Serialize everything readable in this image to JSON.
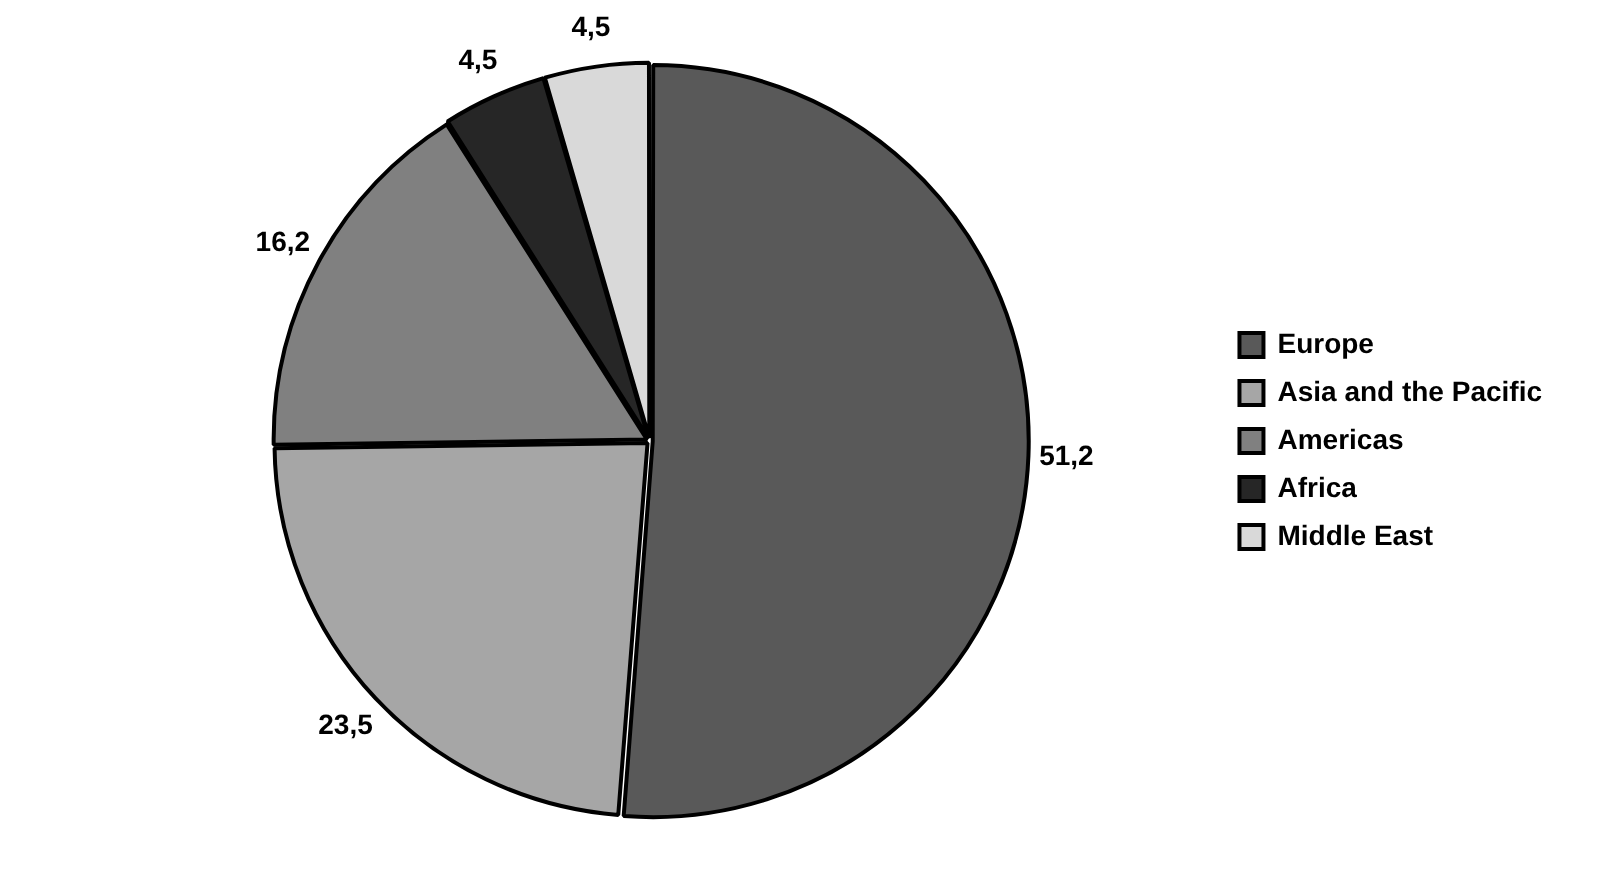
{
  "chart_data": {
    "type": "pie",
    "categories": [
      "Europe",
      "Asia and the Pacific",
      "Americas",
      "Africa",
      "Middle East"
    ],
    "values": [
      51.2,
      23.5,
      16.2,
      4.5,
      4.5
    ],
    "value_labels": [
      "51,2",
      "23,5",
      "16,2",
      "4,5",
      "4,5"
    ],
    "colors": [
      "#595959",
      "#a6a6a6",
      "#808080",
      "#262626",
      "#d9d9d9"
    ],
    "legend": "right"
  }
}
